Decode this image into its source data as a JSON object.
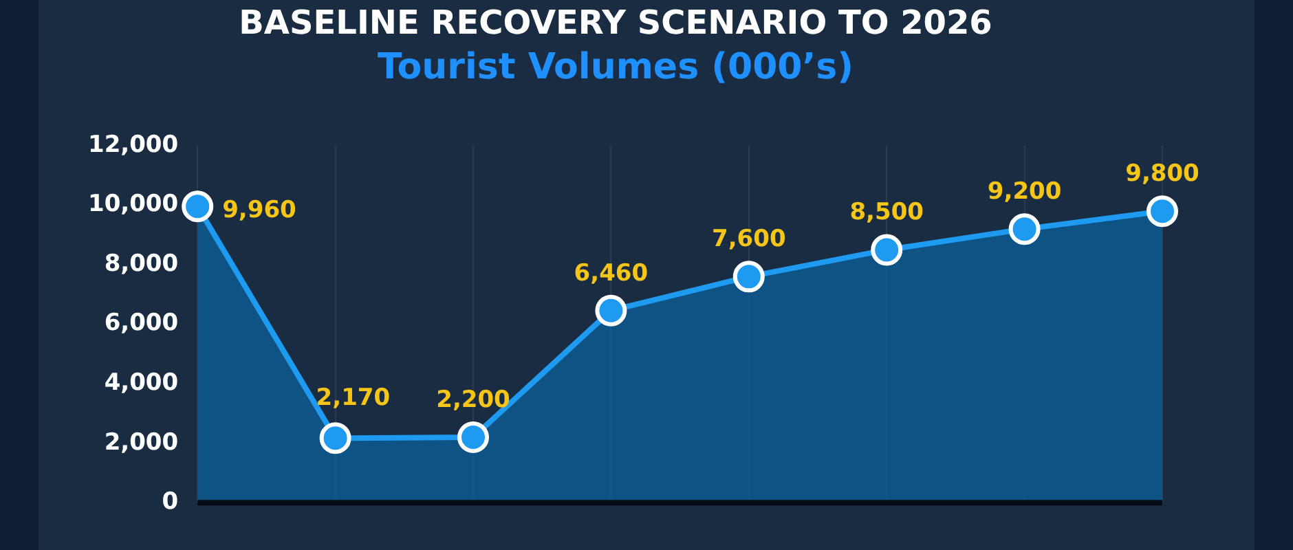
{
  "chart_data": {
    "type": "area",
    "title": "BASELINE RECOVERY SCENARIO TO 2026",
    "subtitle": "Tourist Volumes (000’s)",
    "categories": [
      null,
      null,
      null,
      null,
      null,
      null,
      null,
      null
    ],
    "series": [
      {
        "color": "#1e9bf0",
        "values": [
          9960,
          2170,
          2200,
          6460,
          7600,
          8500,
          9200,
          9800
        ],
        "value_labels": [
          "9,960",
          "2,170",
          "2,200",
          "6,460",
          "7,600",
          "8,500",
          "9,200",
          "9,800"
        ]
      }
    ],
    "ylim": [
      0,
      12000
    ],
    "yticks": [
      0,
      {
        "value": 2000,
        "label": "2,000"
      },
      {
        "value": 4000,
        "label": "4,000"
      },
      {
        "value": 6000,
        "label": "6,000"
      },
      {
        "value": 8000,
        "label": "8,000"
      },
      {
        "value": 10000,
        "label": "10,000"
      },
      {
        "value": 12000,
        "label": "12,000"
      }
    ],
    "grid": "x",
    "marker": "circle"
  }
}
